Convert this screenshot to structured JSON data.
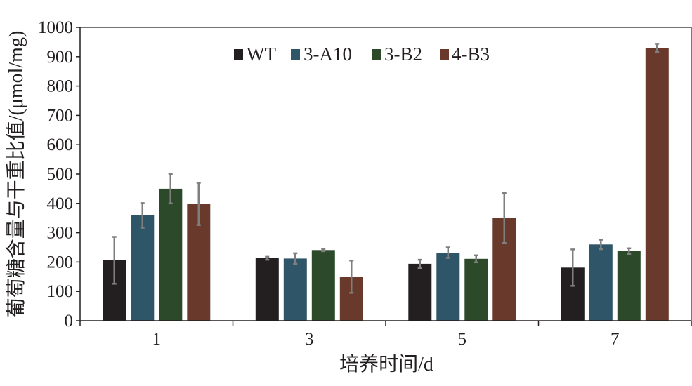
{
  "chart_data": {
    "type": "bar",
    "xlabel": "培养时间/d",
    "ylabel": "葡萄糖含量与干重比值/(μmol/mg)",
    "categories": [
      "1",
      "3",
      "5",
      "7"
    ],
    "ylim": [
      0,
      1000
    ],
    "yticks": [
      0,
      100,
      200,
      300,
      400,
      500,
      600,
      700,
      800,
      900,
      1000
    ],
    "grid": false,
    "legend": "top-center",
    "error_bars": true,
    "series": [
      {
        "name": "WT",
        "color": "#231f20",
        "values": [
          206,
          213,
          194,
          181
        ],
        "errors": [
          80,
          5,
          14,
          62
        ]
      },
      {
        "name": "3-A10",
        "color": "#2f5668",
        "values": [
          359,
          212,
          232,
          260
        ],
        "errors": [
          42,
          18,
          18,
          16
        ]
      },
      {
        "name": "3-B2",
        "color": "#2c4a2a",
        "values": [
          450,
          241,
          211,
          237
        ],
        "errors": [
          50,
          4,
          12,
          10
        ]
      },
      {
        "name": "4-B3",
        "color": "#693a2c",
        "values": [
          398,
          150,
          350,
          930
        ],
        "errors": [
          72,
          55,
          85,
          14
        ]
      }
    ],
    "error_bar_color": "#7f7f7f"
  }
}
